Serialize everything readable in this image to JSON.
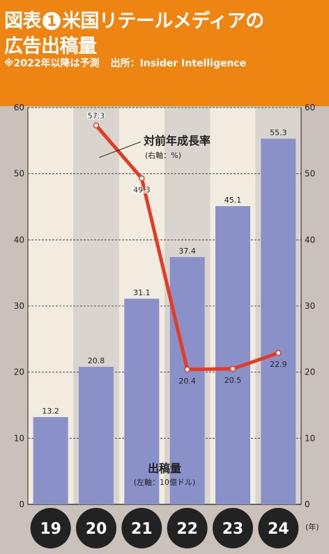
{
  "header": {
    "title_prefix": "図表",
    "title_number": "1",
    "title_line1": "米国リテールメディアの",
    "title_line2": "広告出稿量",
    "note_forecast": "※2022年以降は予測",
    "note_source": "出所：Insider Intelligence"
  },
  "colors": {
    "header_bg": "#ee8411",
    "bar": "#8a90c8",
    "line": "#e33b24",
    "plot_band_light": "#f2ebe0",
    "plot_band_dark": "#dad4cf",
    "year_circle": "#222222"
  },
  "chart_data": {
    "type": "bar",
    "categories": [
      "19",
      "20",
      "21",
      "22",
      "23",
      "24"
    ],
    "x_unit": "(年)",
    "series": [
      {
        "name": "出稿量",
        "axis_note": "(左軸：10億ドル)",
        "type": "bar",
        "axis": "left",
        "values": [
          13.2,
          20.8,
          31.1,
          37.4,
          45.1,
          55.3
        ]
      },
      {
        "name": "対前年成長率",
        "axis_note": "(右軸：%)",
        "type": "line",
        "axis": "right",
        "values": [
          null,
          57.3,
          49.3,
          20.4,
          20.5,
          22.9
        ]
      }
    ],
    "ylim": [
      0,
      60
    ],
    "y_ticks": [
      0,
      10,
      20,
      30,
      40,
      50,
      60
    ],
    "y2lim": [
      0,
      60
    ],
    "y2_ticks": [
      0,
      10,
      20,
      30,
      40,
      50,
      60
    ],
    "grid": true
  }
}
